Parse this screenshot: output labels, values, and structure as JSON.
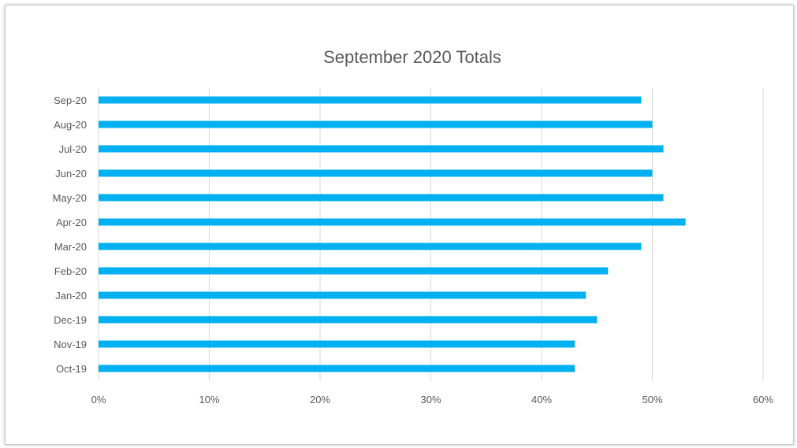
{
  "chart_data": {
    "type": "bar",
    "orientation": "horizontal",
    "title": "September 2020 Totals",
    "categories": [
      "Sep-20",
      "Aug-20",
      "Jul-20",
      "Jun-20",
      "May-20",
      "Apr-20",
      "Mar-20",
      "Feb-20",
      "Jan-20",
      "Dec-19",
      "Nov-19",
      "Oct-19"
    ],
    "values": [
      49,
      50,
      51,
      50,
      51,
      53,
      49,
      46,
      44,
      45,
      43,
      43
    ],
    "xlim": [
      0,
      60
    ],
    "xticks": [
      "0%",
      "10%",
      "20%",
      "30%",
      "40%",
      "50%",
      "60%"
    ],
    "grid": true,
    "legend": "none",
    "bar_color": "#00b0f0",
    "grid_color": "#d9d9d9"
  }
}
